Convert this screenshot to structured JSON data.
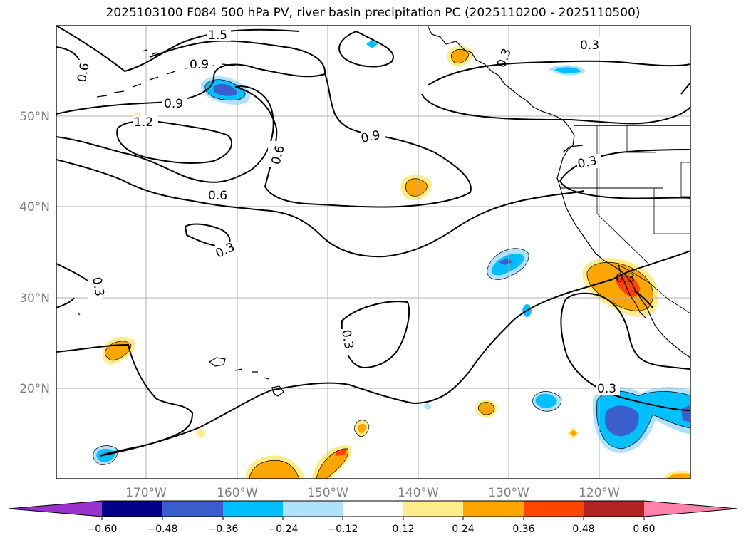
{
  "title": "2025103100 F084 500 hPa PV, river basin precipitation PC (2025110200 - 2025110500)",
  "map": {
    "lon_labels": [
      "170°W",
      "160°W",
      "150°W",
      "140°W",
      "130°W",
      "120°W"
    ],
    "lat_labels": [
      "50°N",
      "40°N",
      "30°N",
      "20°N"
    ],
    "contour_labels": [
      "1.5",
      "0.9",
      "0.6",
      "0.9",
      "1.2",
      "0.6",
      "0.6",
      "0.3",
      "0.3",
      "0.9",
      "0.3",
      "0.3",
      "0.3",
      "0.3",
      "0.3",
      "0.3"
    ]
  },
  "colorbar": {
    "ticks": [
      "−0.60",
      "−0.48",
      "−0.36",
      "−0.24",
      "−0.12",
      "0.12",
      "0.24",
      "0.36",
      "0.48",
      "0.60"
    ],
    "colors": [
      "#9932cc",
      "#00008b",
      "#3a5fcd",
      "#00bfff",
      "#b0e2ff",
      "#ffffff",
      "#ffec8b",
      "#ffa500",
      "#ff4500",
      "#b22222",
      "#ff82ab"
    ]
  }
}
